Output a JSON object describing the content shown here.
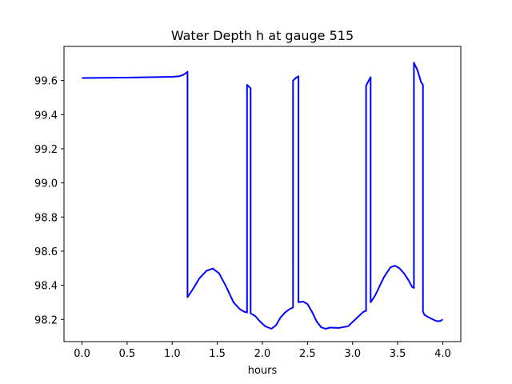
{
  "chart_data": {
    "type": "line",
    "title": "Water Depth h at gauge 515",
    "xlabel": "hours",
    "ylabel": "",
    "xlim": [
      -0.2,
      4.2
    ],
    "ylim": [
      98.07,
      99.8
    ],
    "xticks": [
      0.0,
      0.5,
      1.0,
      1.5,
      2.0,
      2.5,
      3.0,
      3.5,
      4.0
    ],
    "xtick_labels": [
      "0.0",
      "0.5",
      "1.0",
      "1.5",
      "2.0",
      "2.5",
      "3.0",
      "3.5",
      "4.0"
    ],
    "yticks": [
      98.2,
      98.4,
      98.6,
      98.8,
      99.0,
      99.2,
      99.4,
      99.6
    ],
    "ytick_labels": [
      "98.2",
      "98.4",
      "98.6",
      "98.8",
      "99.0",
      "99.2",
      "99.4",
      "99.6"
    ],
    "grid": false,
    "line_color": "#0000ff",
    "series": [
      {
        "x": [
          0.0,
          0.5,
          1.0,
          1.08,
          1.13,
          1.17,
          1.17,
          1.22,
          1.3,
          1.38,
          1.45,
          1.52,
          1.6,
          1.68,
          1.75,
          1.8,
          1.83,
          1.83,
          1.87,
          1.87,
          1.92,
          1.97,
          2.03,
          2.1,
          2.15,
          2.2,
          2.25,
          2.3,
          2.34,
          2.34,
          2.37,
          2.4,
          2.4,
          2.45,
          2.5,
          2.55,
          2.6,
          2.65,
          2.7,
          2.75,
          2.85,
          2.95,
          3.05,
          3.12,
          3.15,
          3.15,
          3.2,
          3.2,
          3.25,
          3.3,
          3.35,
          3.42,
          3.47,
          3.52,
          3.57,
          3.62,
          3.66,
          3.68,
          3.68,
          3.72,
          3.76,
          3.78,
          3.78,
          3.8,
          3.87,
          3.93,
          3.97,
          4.0
        ],
        "y": [
          99.615,
          99.617,
          99.622,
          99.625,
          99.635,
          99.652,
          98.33,
          98.37,
          98.44,
          98.485,
          98.498,
          98.47,
          98.39,
          98.3,
          98.26,
          98.245,
          98.24,
          99.575,
          99.555,
          98.235,
          98.22,
          98.19,
          98.16,
          98.145,
          98.165,
          98.21,
          98.24,
          98.26,
          98.27,
          99.6,
          99.615,
          99.625,
          98.3,
          98.305,
          98.29,
          98.245,
          98.19,
          98.155,
          98.145,
          98.152,
          98.15,
          98.16,
          98.21,
          98.245,
          98.25,
          99.57,
          99.62,
          98.3,
          98.34,
          98.395,
          98.45,
          98.505,
          98.515,
          98.5,
          98.47,
          98.43,
          98.39,
          98.385,
          99.705,
          99.66,
          99.59,
          99.575,
          98.245,
          98.225,
          98.205,
          98.19,
          98.19,
          98.2
        ]
      }
    ]
  }
}
